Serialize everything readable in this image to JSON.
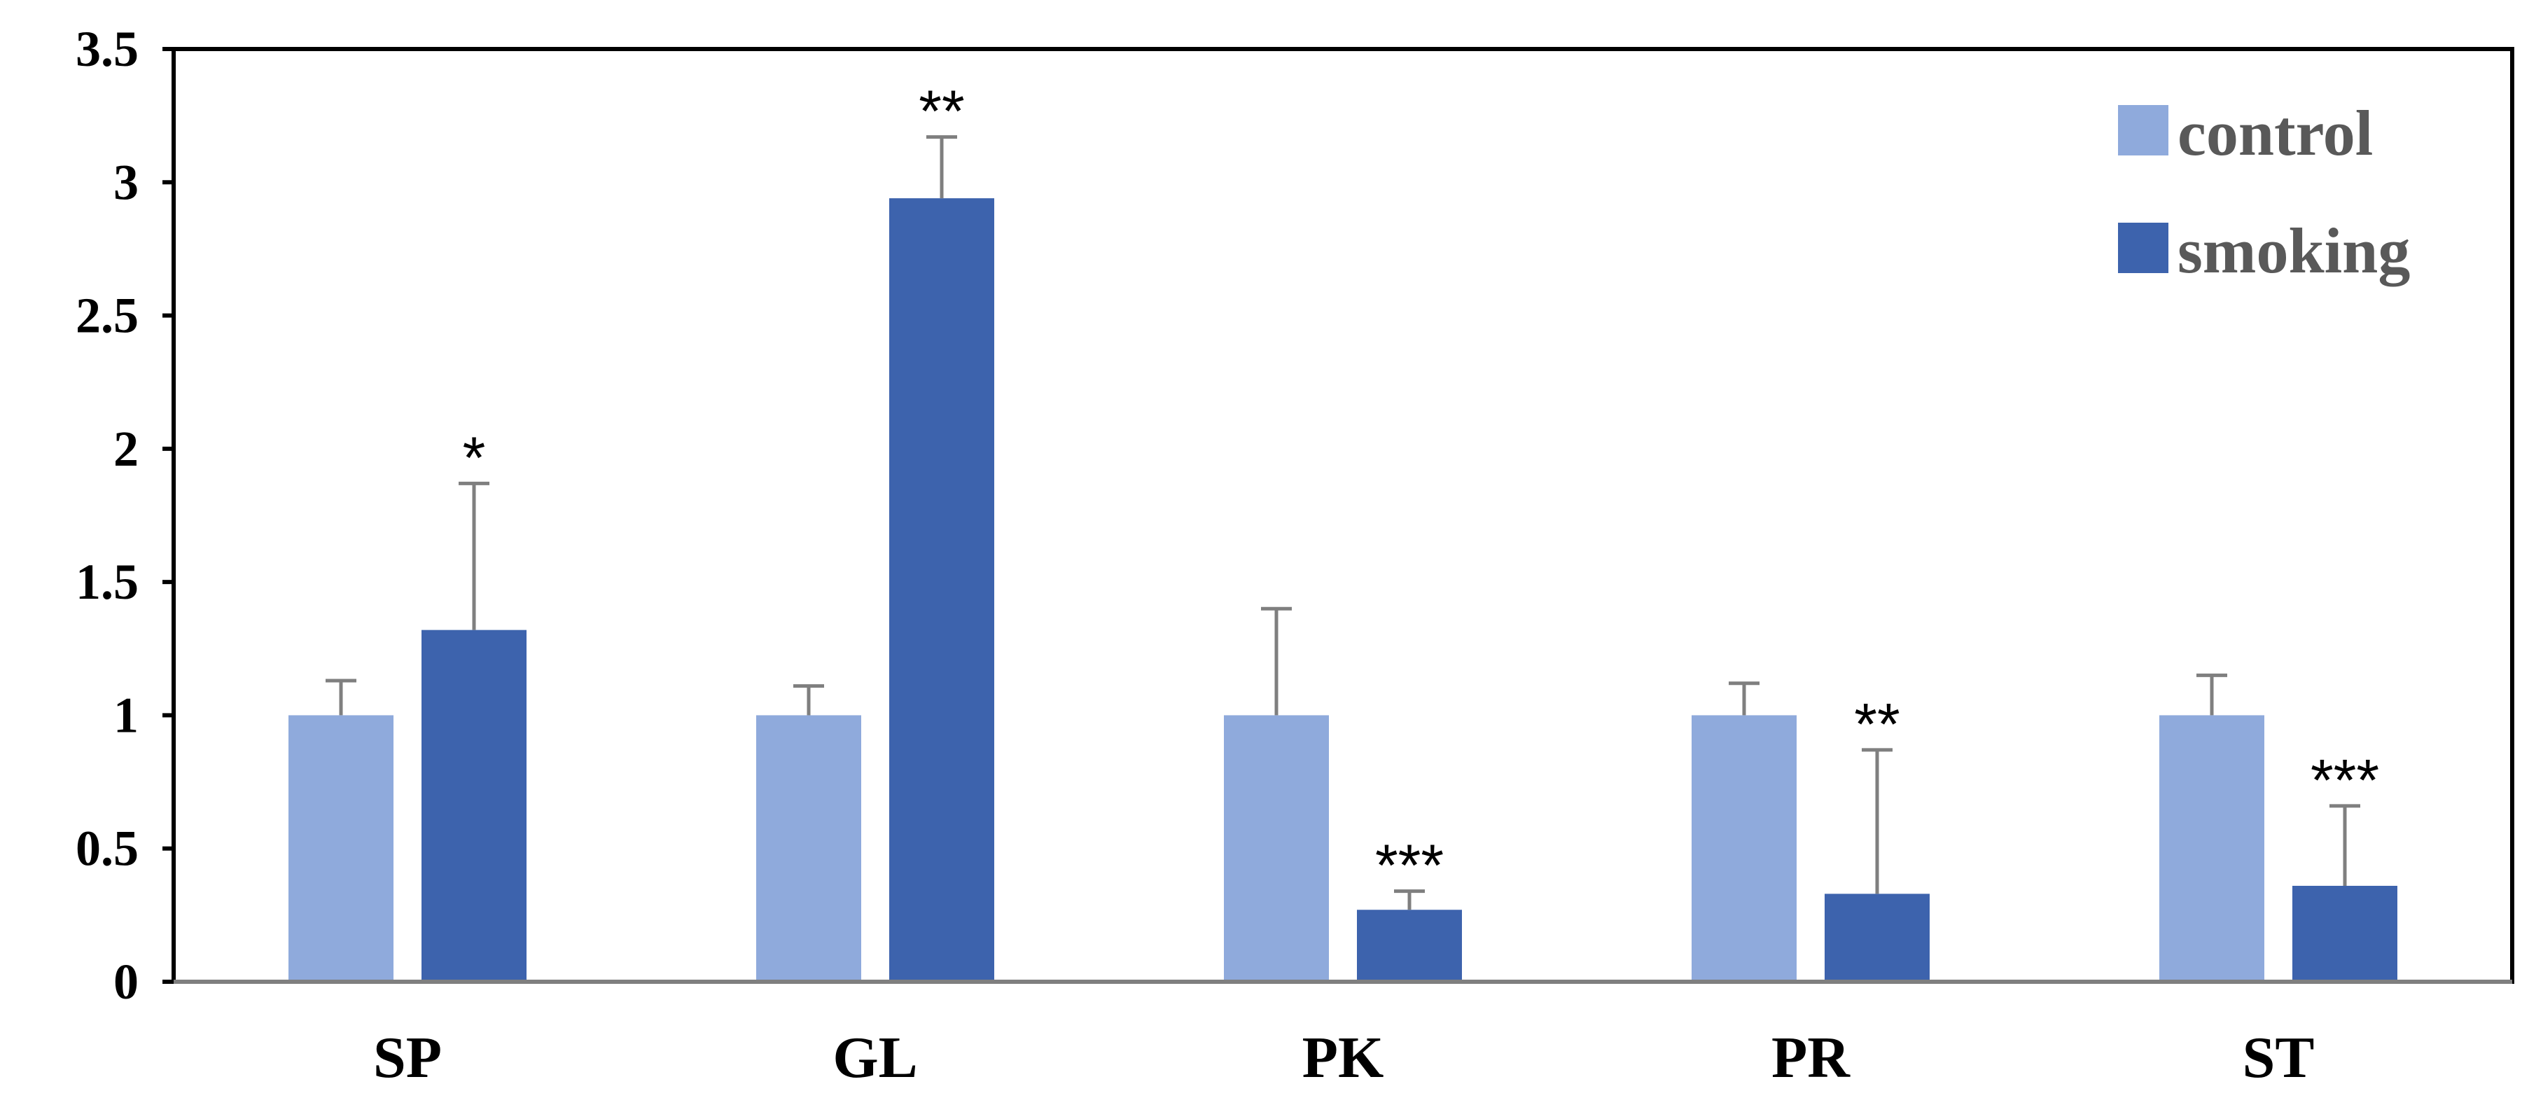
{
  "chart_data": {
    "type": "bar",
    "title": "",
    "xlabel": "",
    "ylabel": "",
    "categories": [
      "SP",
      "GL",
      "PK",
      "PR",
      "ST"
    ],
    "ylim": [
      0,
      3.5
    ],
    "yticks": [
      0,
      0.5,
      1,
      1.5,
      2,
      2.5,
      3,
      3.5
    ],
    "ytick_labels": [
      "0",
      "0.5",
      "1",
      "1.5",
      "2",
      "2.5",
      "3",
      "3.5"
    ],
    "grid": false,
    "legend_position": "top-right",
    "series": [
      {
        "name": "control",
        "color": "#8faadc",
        "values": [
          1,
          1,
          1,
          1,
          1
        ],
        "error": [
          0.13,
          0.11,
          0.4,
          0.12,
          0.15
        ],
        "significance": [
          "",
          "",
          "",
          "",
          ""
        ]
      },
      {
        "name": "smoking",
        "color": "#3d63ad",
        "values": [
          1.32,
          2.94,
          0.27,
          0.33,
          0.36
        ],
        "error": [
          0.55,
          0.23,
          0.07,
          0.54,
          0.3
        ],
        "significance": [
          "*",
          "**",
          "***",
          "**",
          "***"
        ]
      }
    ],
    "error_bar_color": "#7f7f7f"
  }
}
